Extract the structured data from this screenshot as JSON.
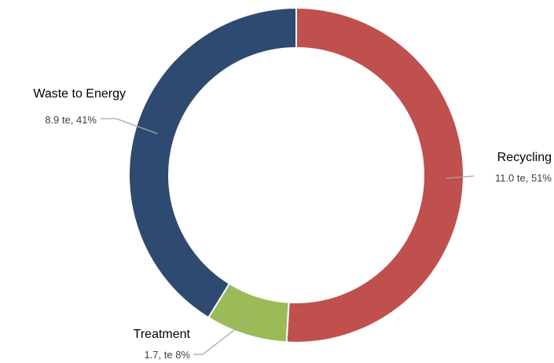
{
  "chart_data": {
    "type": "pie",
    "donut": true,
    "legend": "none",
    "slices": [
      {
        "label": "Recycling",
        "value": 11.0,
        "percent": 51,
        "value_label": "11.0 te, 51%",
        "color": "#C0504D"
      },
      {
        "label": "Treatment",
        "value": 1.7,
        "percent": 8,
        "value_label": "1.7, te 8%",
        "color": "#9BBB59"
      },
      {
        "label": "Waste to Energy",
        "value": 8.9,
        "percent": 41,
        "value_label": "8.9 te, 41%",
        "color": "#2E4A71"
      }
    ]
  }
}
